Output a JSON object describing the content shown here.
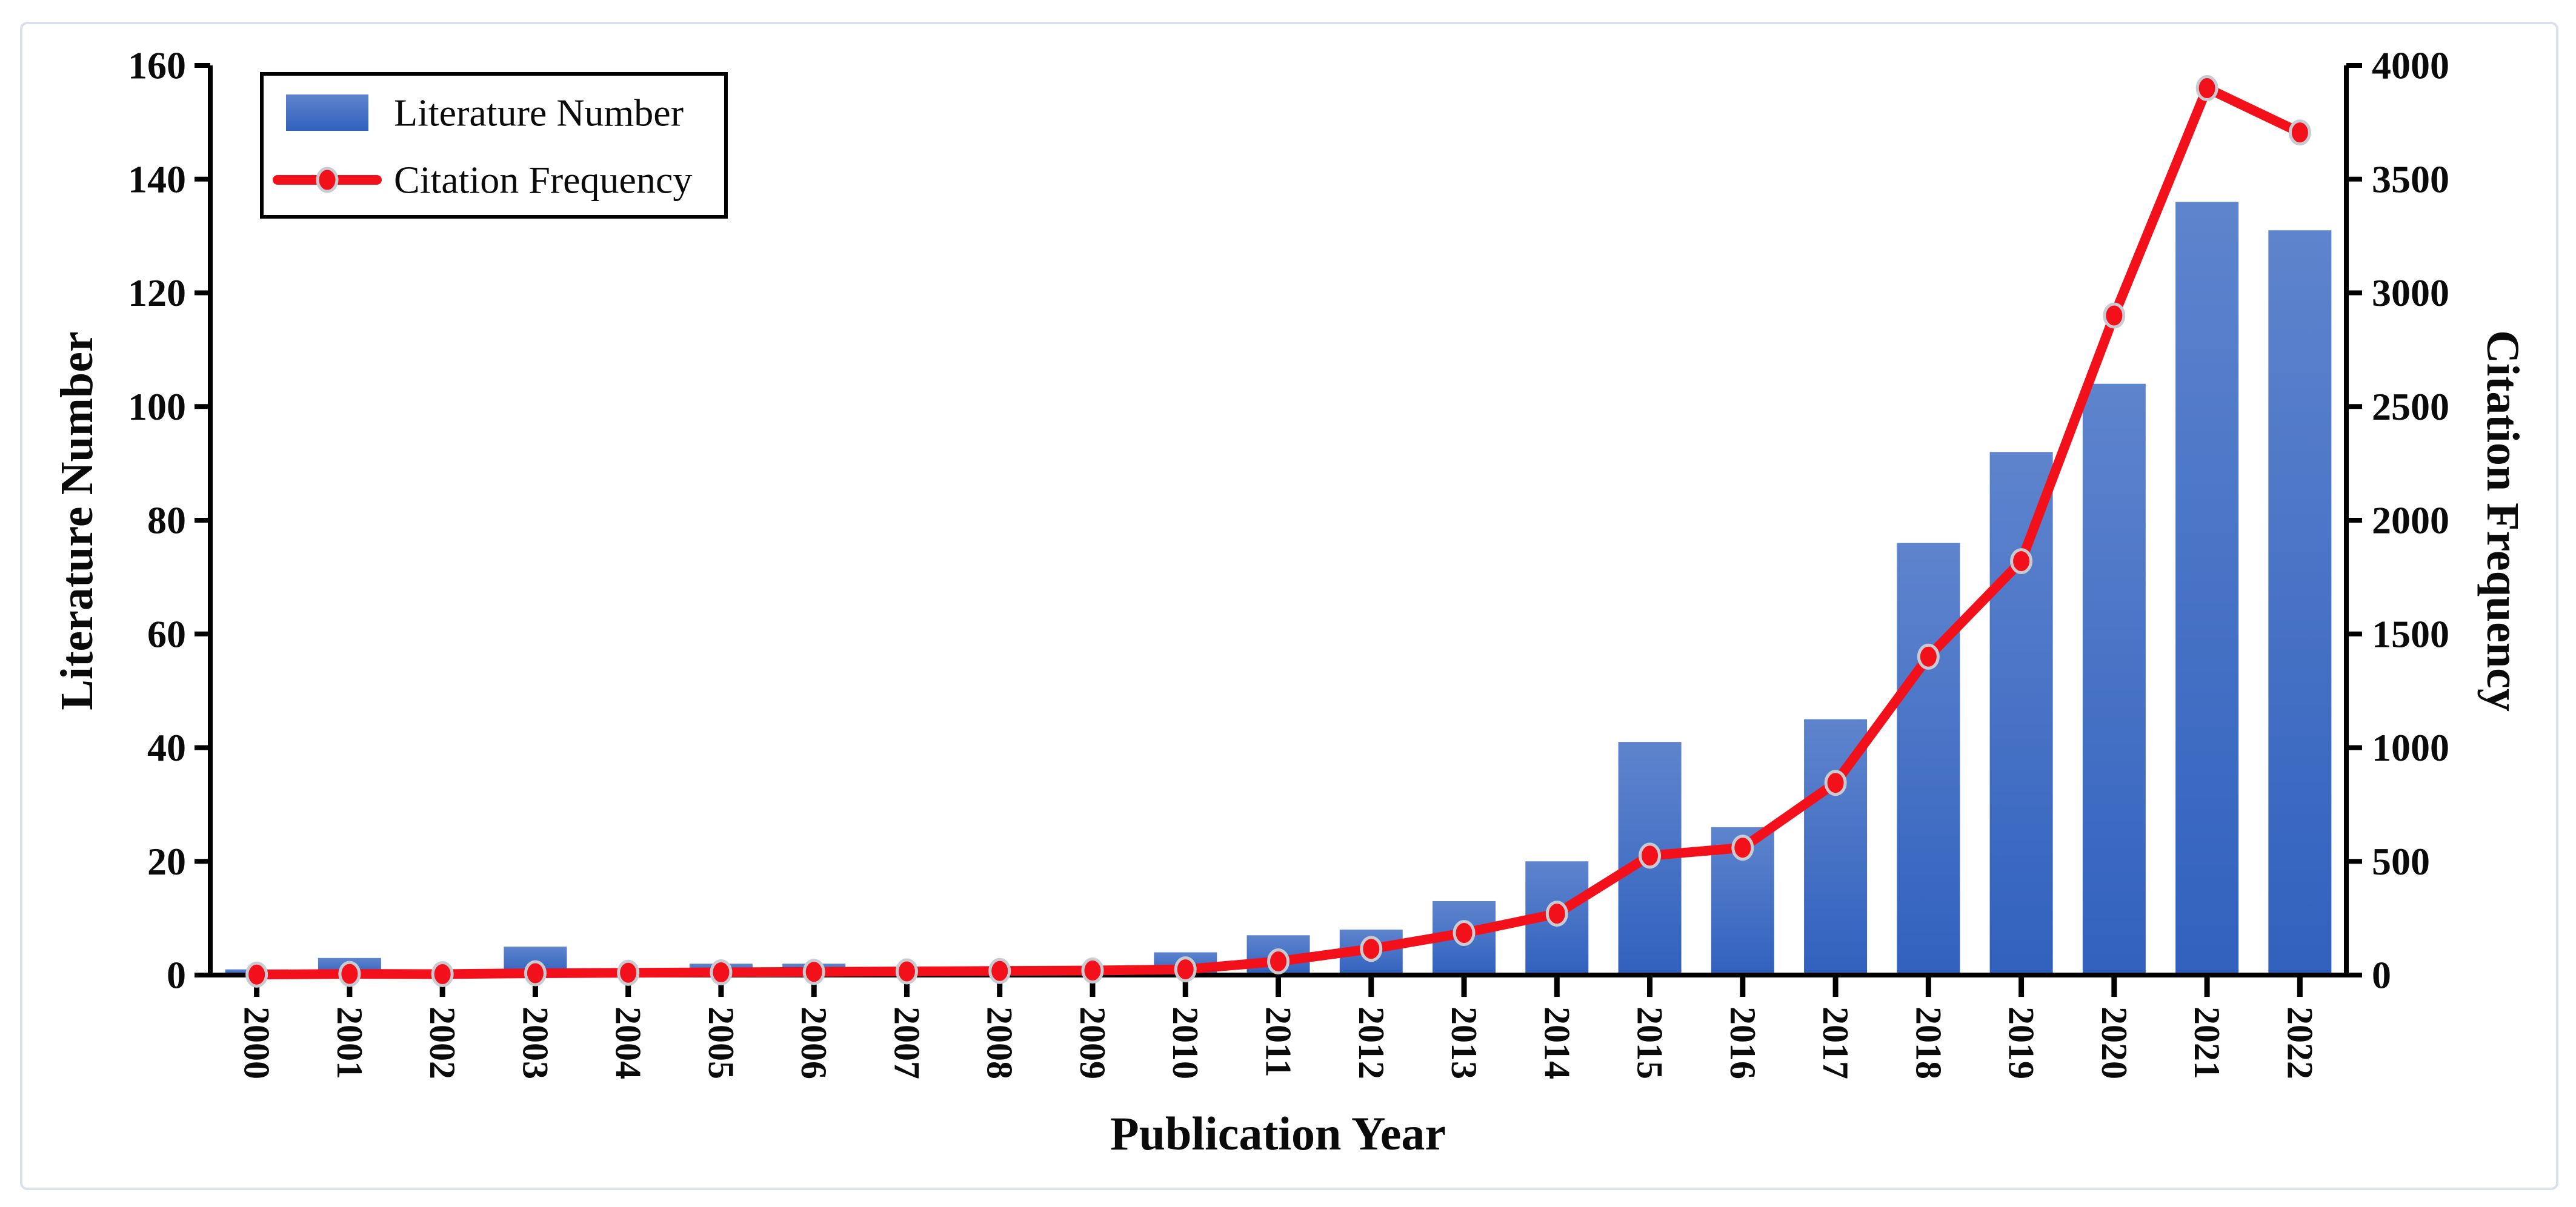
{
  "figure": {
    "xlabel": "Publication Year",
    "ylabel_left": "Literature Number",
    "ylabel_right": "Citation Frequency",
    "legend": {
      "items": [
        {
          "label": "Literature Number",
          "type": "bar"
        },
        {
          "label": "Citation Frequency",
          "type": "line"
        }
      ]
    },
    "colors": {
      "bar_top": "#5E84CD",
      "bar_bottom": "#3161BE",
      "line": "#F2111B",
      "marker_fill": "#F2111B",
      "marker_ring": "#C8CCD2",
      "axis": "#000000",
      "card_border": "#DCE0EA",
      "background": "#FFFFFF"
    }
  },
  "chart_data": {
    "type": "bar+line",
    "categories": [
      "2000",
      "2001",
      "2002",
      "2003",
      "2004",
      "2005",
      "2006",
      "2007",
      "2008",
      "2009",
      "2010",
      "2011",
      "2012",
      "2013",
      "2014",
      "2015",
      "2016",
      "2017",
      "2018",
      "2019",
      "2020",
      "2021",
      "2022"
    ],
    "series": [
      {
        "name": "Literature Number",
        "type": "bar",
        "axis": "left",
        "values": [
          1,
          3,
          1,
          5,
          1,
          2,
          2,
          1,
          1,
          1,
          4,
          7,
          8,
          13,
          20,
          41,
          26,
          45,
          76,
          92,
          104,
          136,
          131
        ]
      },
      {
        "name": "Citation Frequency",
        "type": "line",
        "axis": "right",
        "values": [
          2,
          5,
          4,
          8,
          10,
          12,
          14,
          16,
          18,
          20,
          25,
          60,
          115,
          185,
          270,
          525,
          560,
          845,
          1400,
          1820,
          2900,
          3900,
          3705
        ]
      }
    ],
    "title": "",
    "xlabel": "Publication Year",
    "ylabel_left": "Literature Number",
    "ylabel_right": "Citation Frequency",
    "ylim_left": [
      0,
      160
    ],
    "ytick_step_left": 20,
    "yticks_left": [
      0,
      20,
      40,
      60,
      80,
      100,
      120,
      140,
      160
    ],
    "ylim_right": [
      0,
      4000
    ],
    "ytick_step_right": 500,
    "yticks_right": [
      0,
      500,
      1000,
      1500,
      2000,
      2500,
      3000,
      3500,
      4000
    ],
    "grid": false,
    "legend_position": "top-left"
  }
}
